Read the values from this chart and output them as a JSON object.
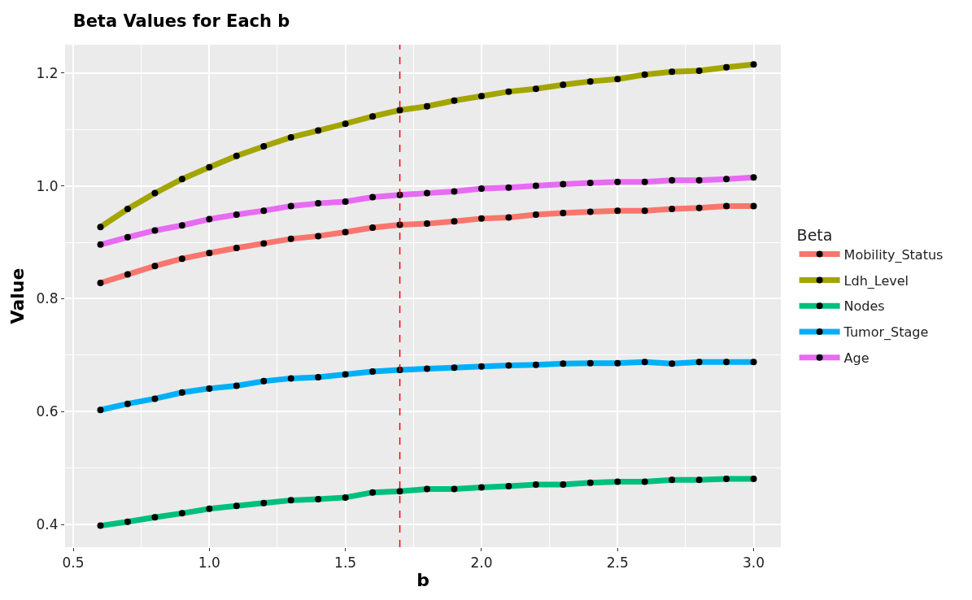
{
  "chart_data": {
    "type": "line",
    "title": "Beta Values for Each b",
    "xlabel": "b",
    "ylabel": "Value",
    "legend_title": "Beta",
    "x": [
      0.6,
      0.7,
      0.8,
      0.9,
      1.0,
      1.1,
      1.2,
      1.3,
      1.4,
      1.5,
      1.6,
      1.7,
      1.8,
      1.9,
      2.0,
      2.1,
      2.2,
      2.3,
      2.4,
      2.5,
      2.6,
      2.7,
      2.8,
      2.9,
      3.0
    ],
    "series": [
      {
        "name": "Mobility_Status",
        "color": "#f8766d",
        "values": [
          0.828,
          0.843,
          0.858,
          0.871,
          0.881,
          0.89,
          0.898,
          0.906,
          0.911,
          0.918,
          0.926,
          0.931,
          0.933,
          0.937,
          0.942,
          0.944,
          0.949,
          0.952,
          0.954,
          0.956,
          0.956,
          0.959,
          0.961,
          0.964,
          0.964
        ]
      },
      {
        "name": "Ldh_Level",
        "color": "#a3a500",
        "values": [
          0.927,
          0.959,
          0.987,
          1.012,
          1.033,
          1.053,
          1.07,
          1.086,
          1.098,
          1.11,
          1.123,
          1.134,
          1.141,
          1.151,
          1.159,
          1.167,
          1.172,
          1.179,
          1.185,
          1.189,
          1.197,
          1.202,
          1.204,
          1.21,
          1.215
        ]
      },
      {
        "name": "Nodes",
        "color": "#00bf7d",
        "values": [
          0.398,
          0.405,
          0.413,
          0.42,
          0.428,
          0.433,
          0.438,
          0.443,
          0.445,
          0.448,
          0.457,
          0.459,
          0.463,
          0.463,
          0.466,
          0.468,
          0.471,
          0.471,
          0.474,
          0.476,
          0.476,
          0.479,
          0.479,
          0.481,
          0.481
        ]
      },
      {
        "name": "Tumor_Stage",
        "color": "#00b0f6",
        "values": [
          0.603,
          0.614,
          0.623,
          0.634,
          0.641,
          0.646,
          0.654,
          0.659,
          0.661,
          0.666,
          0.671,
          0.674,
          0.676,
          0.678,
          0.68,
          0.682,
          0.683,
          0.685,
          0.686,
          0.686,
          0.688,
          0.685,
          0.688,
          0.688,
          0.688
        ]
      },
      {
        "name": "Age",
        "color": "#e76bf3",
        "values": [
          0.896,
          0.909,
          0.921,
          0.93,
          0.941,
          0.949,
          0.956,
          0.964,
          0.969,
          0.972,
          0.98,
          0.984,
          0.987,
          0.99,
          0.995,
          0.997,
          1.0,
          1.003,
          1.005,
          1.007,
          1.007,
          1.01,
          1.01,
          1.012,
          1.015
        ]
      }
    ],
    "xlim": [
      0.47,
      3.1
    ],
    "ylim": [
      0.36,
      1.25
    ],
    "xticks": [
      {
        "value": 0.5,
        "label": "0.5"
      },
      {
        "value": 1.0,
        "label": "1.0"
      },
      {
        "value": 1.5,
        "label": "1.5"
      },
      {
        "value": 2.0,
        "label": "2.0"
      },
      {
        "value": 2.5,
        "label": "2.5"
      },
      {
        "value": 3.0,
        "label": "3.0"
      }
    ],
    "yticks": [
      {
        "value": 0.4,
        "label": "0.4"
      },
      {
        "value": 0.6,
        "label": "0.6"
      },
      {
        "value": 0.8,
        "label": "0.8"
      },
      {
        "value": 1.0,
        "label": "1.0"
      },
      {
        "value": 1.2,
        "label": "1.2"
      }
    ],
    "ref_lines": [
      {
        "axis": "x",
        "value": 1.7,
        "color": "#ff0000",
        "line_style": "dashed"
      }
    ],
    "grid": true,
    "legend": "right",
    "marker": "circle",
    "line_style": "solid"
  }
}
